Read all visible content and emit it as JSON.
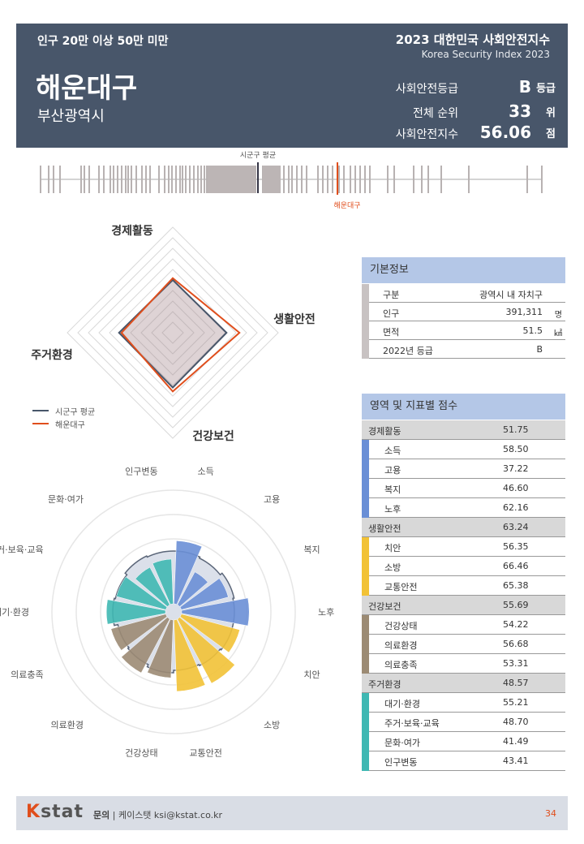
{
  "header": {
    "category": "인구 20만 이상 50만 미만",
    "index_title": "2023 대한민국 사회안전지수",
    "index_title_en": "Korea Security Index 2023",
    "district": "해운대구",
    "city": "부산광역시",
    "rows": [
      {
        "label": "사회안전등급",
        "value": "B",
        "unit": "등급"
      },
      {
        "label": "전체 순위",
        "value": "33",
        "unit": "위"
      },
      {
        "label": "사회안전지수",
        "value": "56.06",
        "unit": "점"
      }
    ]
  },
  "strip": {
    "avg_label": "시군구 평균",
    "self_label": "해운대구",
    "avg_color": "#333344",
    "self_color": "#e04e1c"
  },
  "radar": {
    "axes": [
      "경제활동",
      "생활안전",
      "건강보건",
      "주거환경"
    ],
    "series": [
      {
        "name": "시군구 평균",
        "color": "#48566a",
        "values": [
          50,
          51,
          52,
          51
        ]
      },
      {
        "name": "해운대구",
        "color": "#e04e1c",
        "values": [
          51.75,
          63.24,
          55.69,
          48.57
        ]
      }
    ]
  },
  "chart_data": {
    "type": "rose",
    "categories": [
      "소득",
      "고용",
      "복지",
      "노후",
      "치안",
      "소방",
      "교통안전",
      "건강상태",
      "의료환경",
      "의료충족",
      "대기·환경",
      "주거·보육·교육",
      "문화·여가",
      "인구변동"
    ],
    "series": [
      {
        "name": "해운대구",
        "values": [
          58.5,
          37.22,
          46.6,
          62.16,
          56.35,
          66.46,
          65.38,
          54.22,
          56.68,
          53.31,
          55.21,
          48.7,
          41.49,
          43.41
        ]
      },
      {
        "name": "시군구 평균",
        "values": [
          50,
          49,
          51,
          50,
          50,
          49,
          48,
          50,
          48,
          47,
          50,
          49,
          51,
          50
        ]
      }
    ],
    "domain_colors": [
      "#6a8fd6",
      "#6a8fd6",
      "#6a8fd6",
      "#6a8fd6",
      "#f2c236",
      "#f2c236",
      "#f2c236",
      "#9c8b74",
      "#9c8b74",
      "#9c8b74",
      "#3fb8b3",
      "#3fb8b3",
      "#3fb8b3",
      "#3fb8b3"
    ]
  },
  "basic_info": {
    "title": "기본정보",
    "rows": [
      {
        "key": "구분",
        "value": "광역시 내 자치구",
        "unit": ""
      },
      {
        "key": "인구",
        "value": "391,311",
        "unit": "명"
      },
      {
        "key": "면적",
        "value": "51.5",
        "unit": "㎢"
      },
      {
        "key": "2022년 등급",
        "value": "B",
        "unit": ""
      }
    ]
  },
  "scores": {
    "title": "영역 및 지표별 점수",
    "domains": [
      {
        "name": "경제활동",
        "score": "51.75",
        "color": "#6a8fd6",
        "items": [
          {
            "name": "소득",
            "score": "58.50"
          },
          {
            "name": "고용",
            "score": "37.22"
          },
          {
            "name": "복지",
            "score": "46.60"
          },
          {
            "name": "노후",
            "score": "62.16"
          }
        ]
      },
      {
        "name": "생활안전",
        "score": "63.24",
        "color": "#f2c236",
        "items": [
          {
            "name": "치안",
            "score": "56.35"
          },
          {
            "name": "소방",
            "score": "66.46"
          },
          {
            "name": "교통안전",
            "score": "65.38"
          }
        ]
      },
      {
        "name": "건강보건",
        "score": "55.69",
        "color": "#9c8b74",
        "items": [
          {
            "name": "건강상태",
            "score": "54.22"
          },
          {
            "name": "의료환경",
            "score": "56.68"
          },
          {
            "name": "의료충족",
            "score": "53.31"
          }
        ]
      },
      {
        "name": "주거환경",
        "score": "48.57",
        "color": "#3fb8b3",
        "items": [
          {
            "name": "대기·환경",
            "score": "55.21"
          },
          {
            "name": "주거·보육·교육",
            "score": "48.70"
          },
          {
            "name": "문화·여가",
            "score": "41.49"
          },
          {
            "name": "인구변동",
            "score": "43.41"
          }
        ]
      }
    ]
  },
  "footer": {
    "logo_k": "K",
    "logo_rest": "stat",
    "contact_label": "문의",
    "contact_text": "| 케이스탯 ksi@kstat.co.kr",
    "page": "34"
  }
}
